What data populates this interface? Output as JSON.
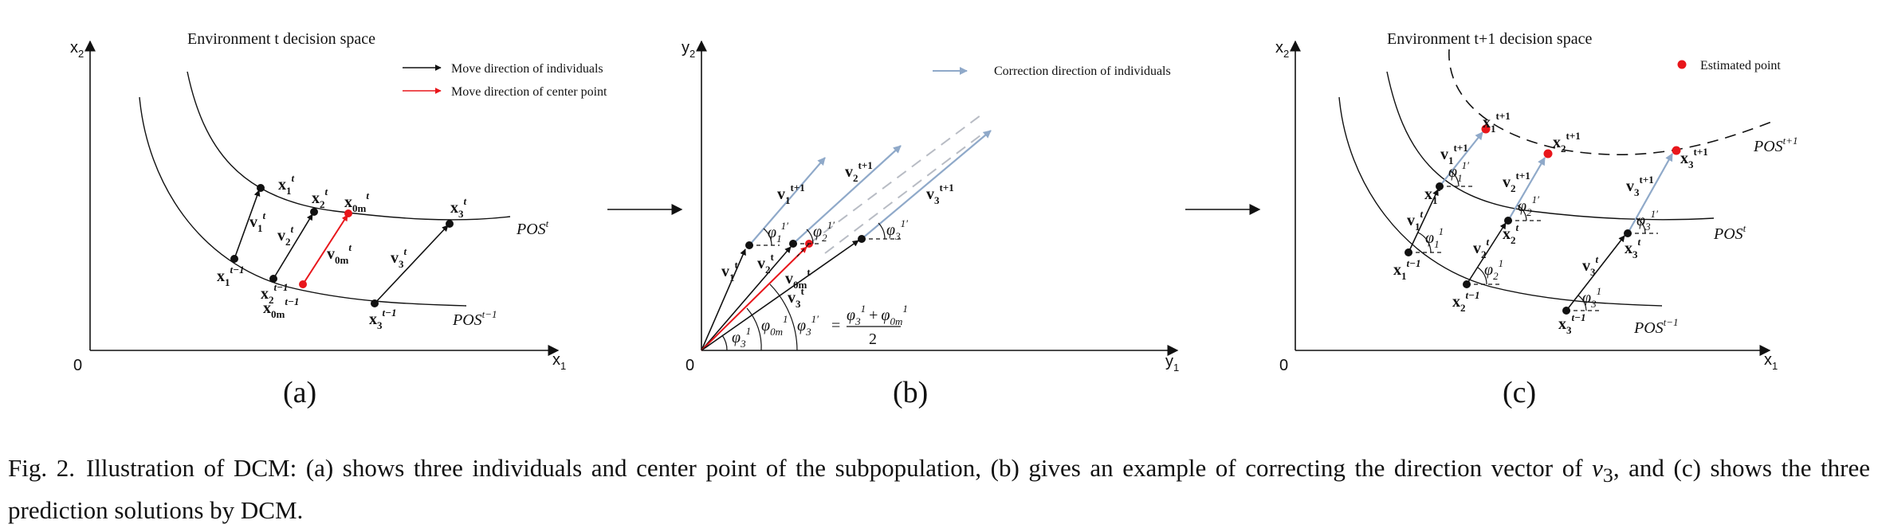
{
  "panels": {
    "a": {
      "label": "(a)",
      "title": "Environment t decision space",
      "legend_black": "Move direction of individuals",
      "legend_red": "Move direction of center point",
      "origin": "0",
      "x_axis": "x",
      "x_axis_sub": "1",
      "y_axis": "x",
      "y_axis_sub": "2",
      "pos_t": "POS",
      "pos_t_sup": "t",
      "pos_t1": "POS",
      "pos_t1_sup": "t−1"
    },
    "b": {
      "label": "(b)",
      "legend_blue": "Correction direction of individuals",
      "origin": "0",
      "x_axis": "y",
      "x_axis_sub": "1",
      "y_axis": "y",
      "y_axis_sub": "2",
      "formula_lhs": "φ",
      "formula_lhs_sub": "3",
      "formula_lhs_sup": "1′",
      "formula_eq": "=",
      "formula_num": "φ",
      "formula_num_sub1": "3",
      "formula_num_sup1": "1",
      "formula_plus": "+",
      "formula_num2": "φ",
      "formula_num_sub2": "0m",
      "formula_num_sup2": "1",
      "formula_den": "2"
    },
    "c": {
      "label": "(c)",
      "title": "Environment t+1 decision space",
      "legend_red": "Estimated point",
      "origin": "0",
      "x_axis": "x",
      "x_axis_sub": "1",
      "y_axis": "x",
      "y_axis_sub": "2",
      "pos_t": "POS",
      "pos_t_sup": "t",
      "pos_t1": "POS",
      "pos_t1_sup": "t−1",
      "pos_next": "POS",
      "pos_next_sup": "t+1"
    }
  },
  "caption": {
    "label": "Fig. 2.",
    "text_1": "Illustration of DCM: (a) shows three individuals and center point of the subpopulation, (b) gives an example of correcting the direction vector of ",
    "var": "v",
    "var_sub": "3",
    "text_2": ", and (c) shows the three prediction solutions by DCM."
  },
  "colors": {
    "black": "#111111",
    "red": "#e8161b",
    "blue": "#8fa9c9",
    "gray_dash": "#b8bcc4"
  }
}
